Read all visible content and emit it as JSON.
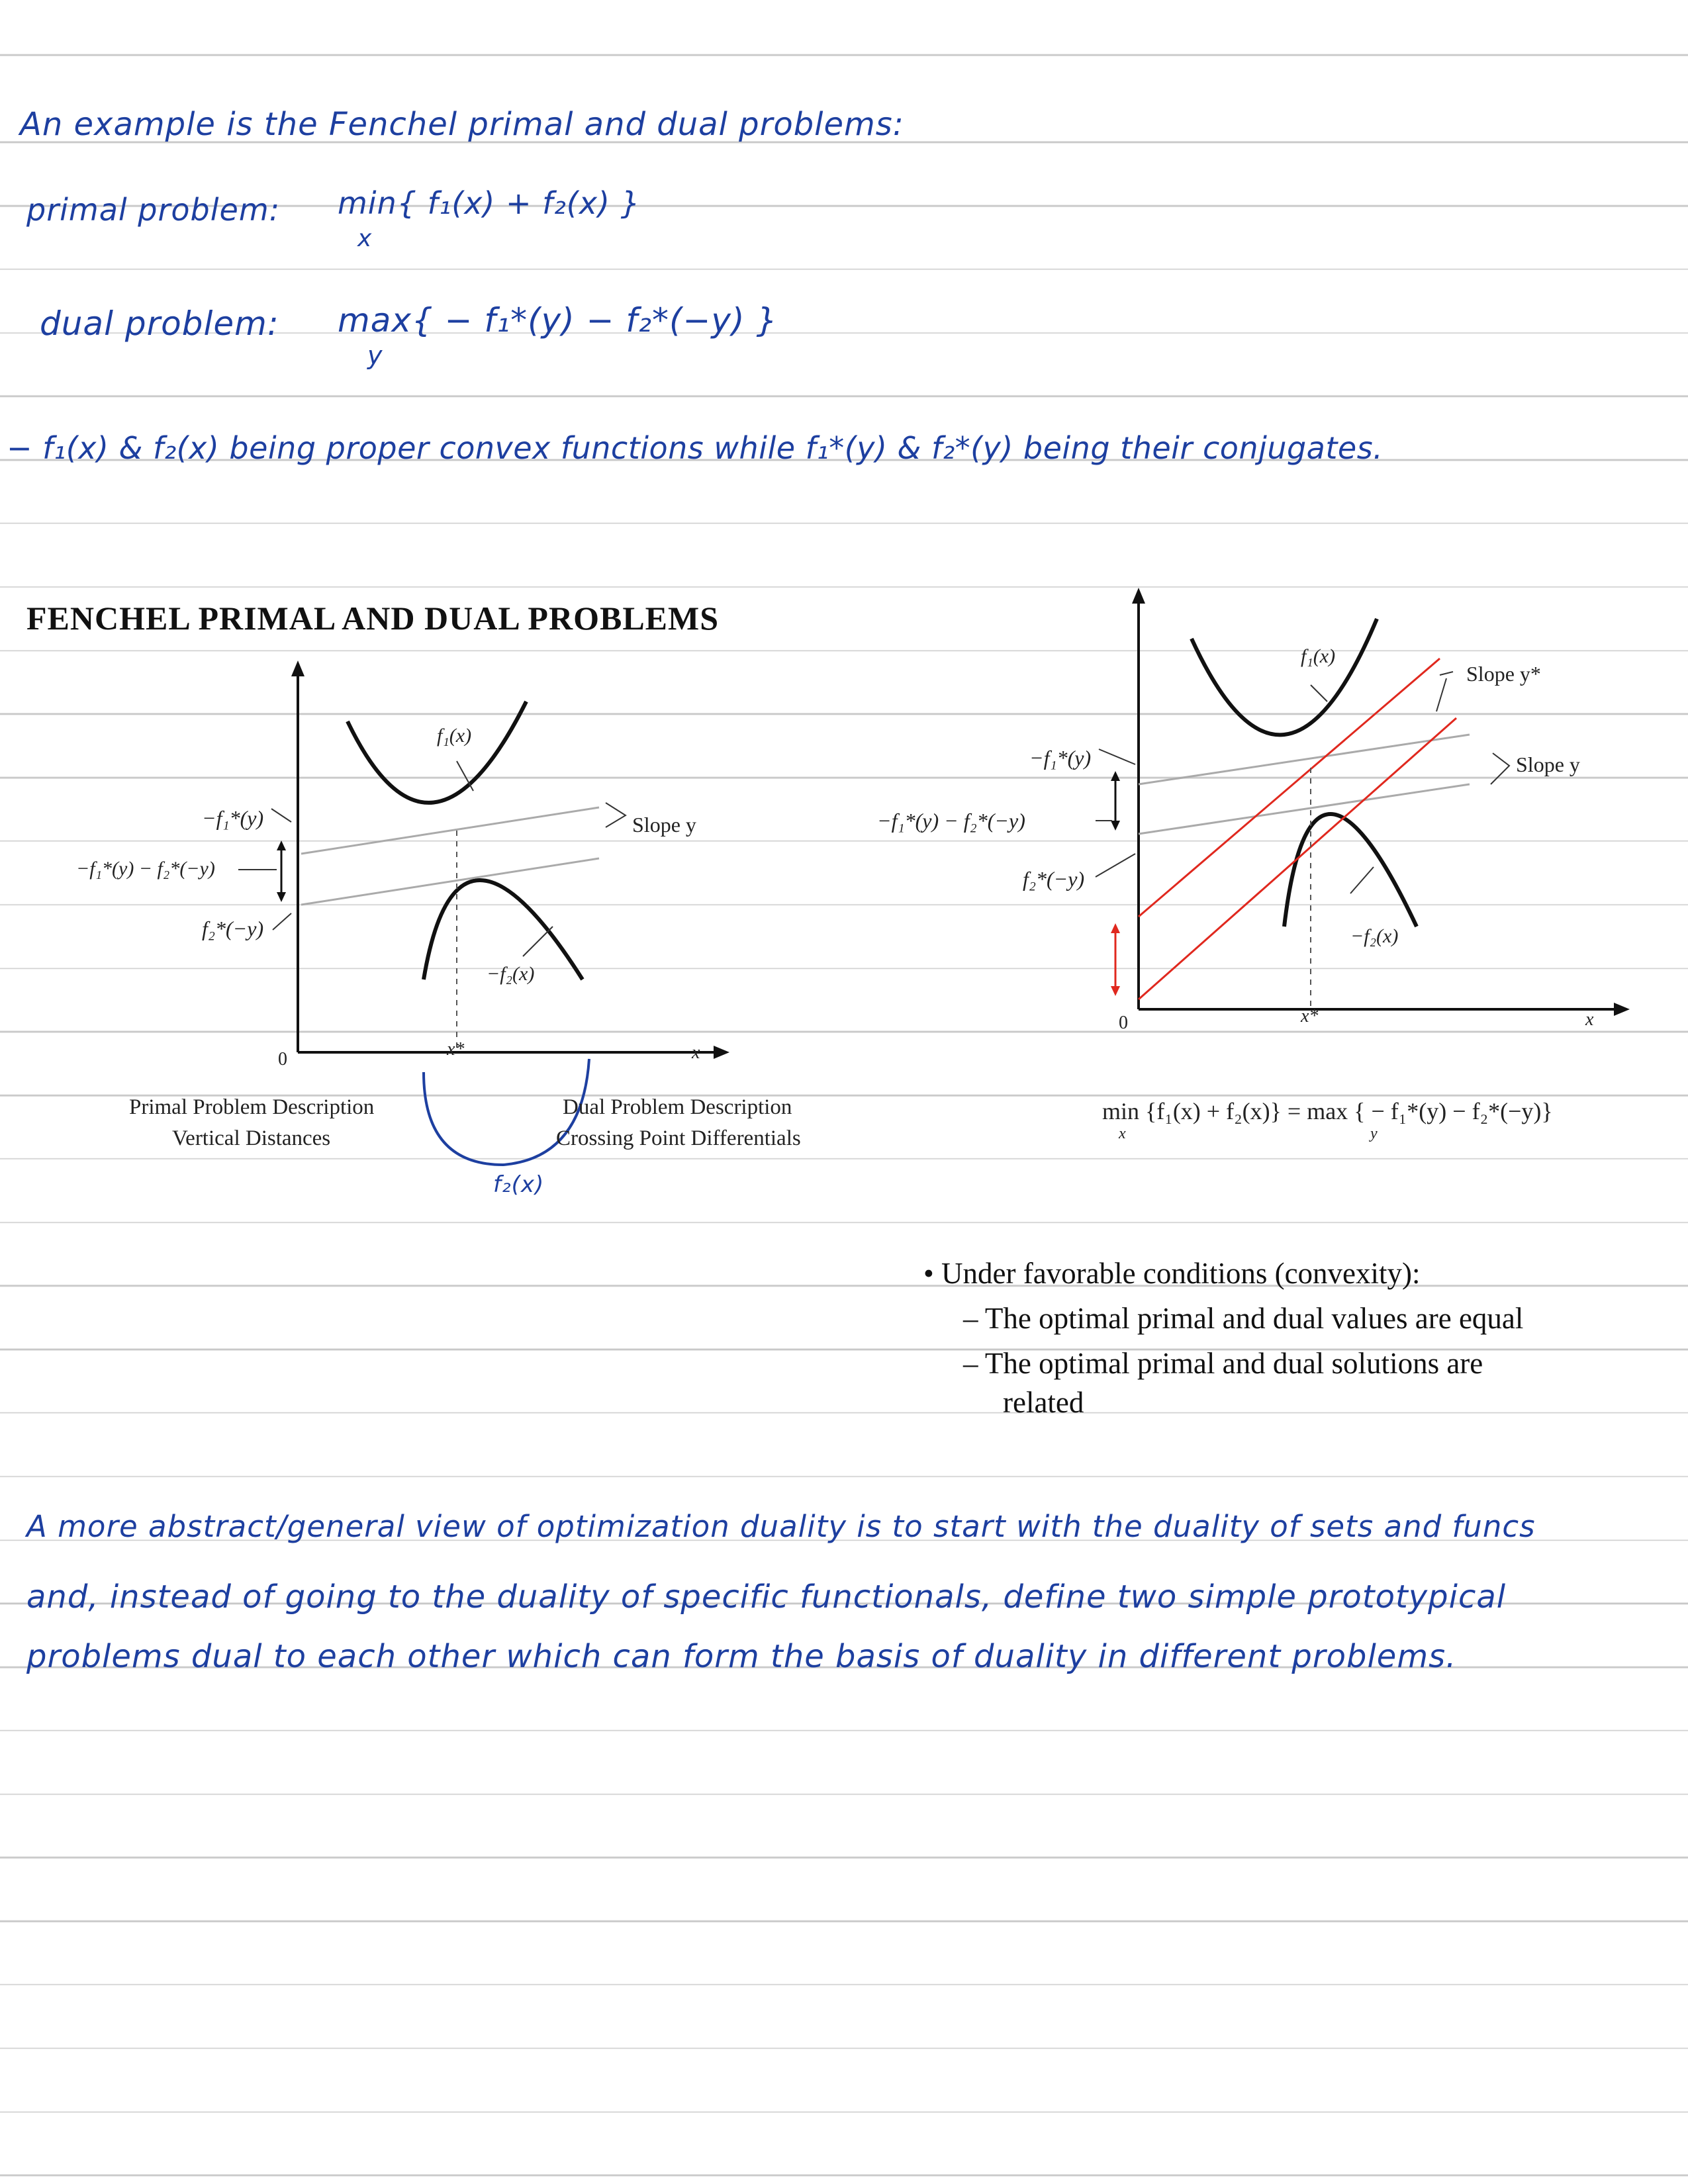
{
  "notes": {
    "line1": "An example is the Fenchel primal and dual problems:",
    "line2_label": "primal problem:",
    "line2_expr": "min{ f₁(x) + f₂(x) }",
    "line2_sub": "x",
    "line3_label": "dual problem:",
    "line3_expr": "max{ − f₁*(y) − f₂*(−y) }",
    "line3_sub": "y",
    "line4": "− f₁(x) & f₂(x) being proper convex functions while f₁*(y) & f₂*(y) being their conjugates.",
    "para_line1": "A more abstract/general view of optimization duality is to start with the duality of sets and funcs",
    "para_line2": "and, instead of going to the duality of specific functionals, define two simple prototypical",
    "para_line3": "problems dual to each other which can form the basis of duality in different problems.",
    "f2_annotation": "f₂(x)"
  },
  "slide": {
    "title": "FENCHEL PRIMAL AND DUAL PROBLEMS",
    "left": {
      "f1_label": "f₁(x)",
      "neg_f2_label": "−f₂(x)",
      "neg_f1star_label": "−f₁*(y)",
      "gap_label": "−f₁*(y) − f₂*(−y)",
      "f2star_label": "f₂*(−y)",
      "slope_label": "Slope y",
      "origin_label": "0",
      "xstar_label": "x*",
      "x_label": "x",
      "primal_desc_1": "Primal Problem Description",
      "primal_desc_2": "Vertical Distances",
      "dual_desc_1": "Dual Problem Description",
      "dual_desc_2": "Crossing Point Differentials"
    },
    "right": {
      "f1_label": "f₁(x)",
      "slope_ystar_label": "Slope y*",
      "slope_y_label": "Slope y",
      "neg_f1star_label": "−f₁*(y)",
      "gap_label": "−f₁*(y) − f₂*(−y)",
      "f2star_label": "f₂*(−y)",
      "neg_f2_label": "−f₂(x)",
      "origin_label": "0",
      "xstar_label": "x*",
      "x_label": "x",
      "equation": "min {f₁(x) + f₂(x)} = max { − f₁*(y) − f₂*(−y)}",
      "eq_sub_x": "x",
      "eq_sub_y": "y"
    },
    "bullets": {
      "b1": "•  Under favorable conditions (convexity):",
      "b2": "–  The optimal primal and dual values are equal",
      "b3": "–  The optimal primal and dual solutions are",
      "b3b": "related"
    }
  },
  "colors": {
    "ink": "#1d3fa0",
    "rule": "#c8c8c8",
    "red": "#e0281e",
    "grey_line": "#aaaaaa"
  }
}
